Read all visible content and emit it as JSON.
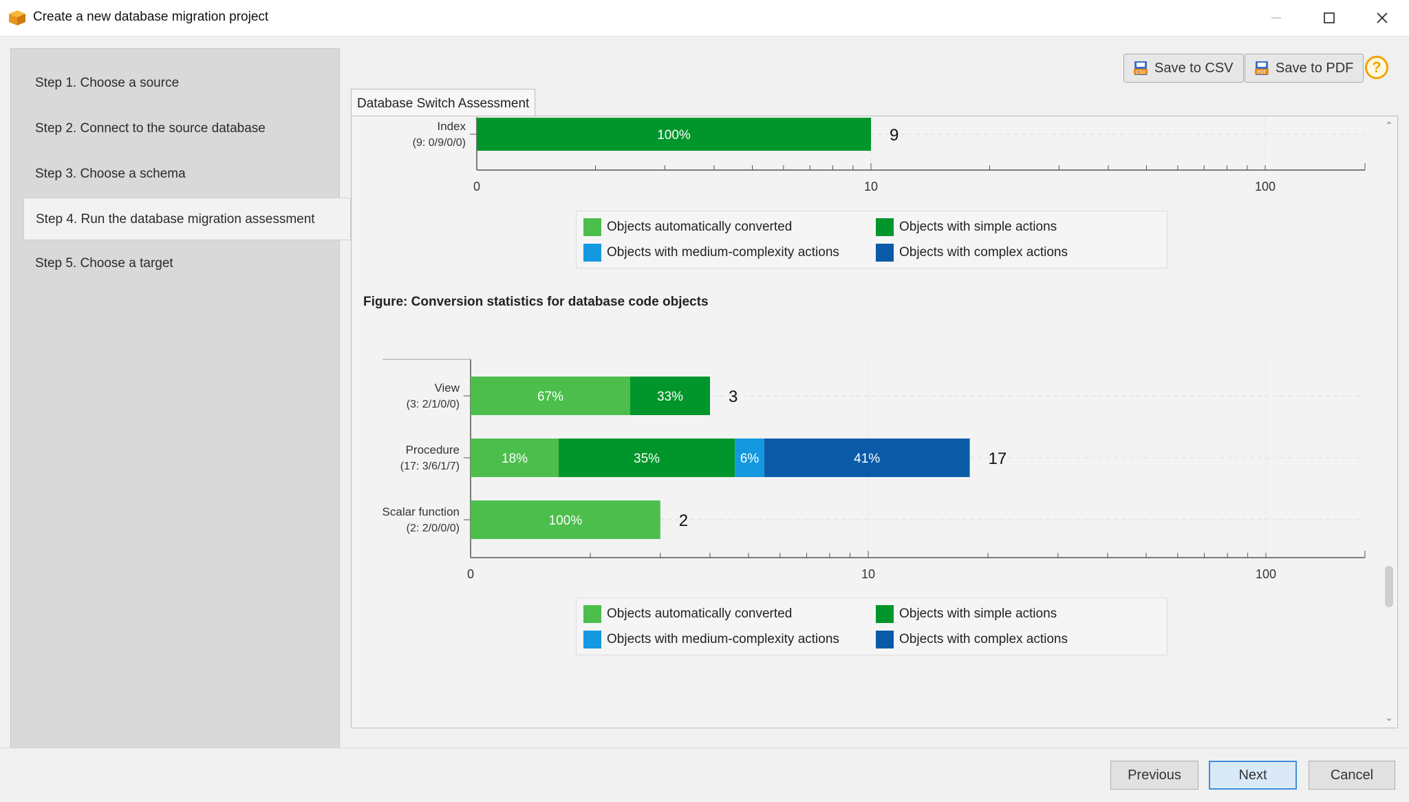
{
  "window": {
    "title": "Create a new database migration project",
    "minimize_icon": "minimize-icon",
    "maximize_icon": "maximize-icon",
    "close_icon": "close-icon"
  },
  "sidebar": {
    "items": [
      {
        "label": "Step 1. Choose a source"
      },
      {
        "label": "Step 2. Connect to the source database"
      },
      {
        "label": "Step 3. Choose a schema"
      },
      {
        "label": "Step 4. Run the database migration assessment",
        "active": true
      },
      {
        "label": "Step 5. Choose a target"
      }
    ]
  },
  "toolbar": {
    "save_csv": "Save to CSV",
    "save_pdf": "Save to PDF",
    "help": "?"
  },
  "tab": {
    "label": "Database Switch Assessment"
  },
  "colors": {
    "auto": "#4cbe4c",
    "simple": "#00962b",
    "medium": "#1499e0",
    "complex": "#0a5aa8"
  },
  "legend": {
    "auto": "Objects automatically converted",
    "simple": "Objects with simple actions",
    "medium": "Objects with medium-complexity actions",
    "complex": "Objects with complex actions"
  },
  "figure2_title": "Figure: Conversion statistics for database code objects",
  "chart_data": [
    {
      "type": "bar",
      "orientation": "horizontal",
      "stacked": true,
      "x_scale": "log1p",
      "x_ticks": [
        "0",
        "10",
        "100"
      ],
      "categories": [
        {
          "name": "Index",
          "sub": "(9: 0/9/0/0)"
        }
      ],
      "totals": [
        9
      ],
      "series": [
        {
          "name": "Objects automatically converted",
          "values": [
            0
          ],
          "labels": [
            ""
          ]
        },
        {
          "name": "Objects with simple actions",
          "values": [
            9
          ],
          "labels": [
            "100%"
          ]
        },
        {
          "name": "Objects with medium-complexity actions",
          "values": [
            0
          ],
          "labels": [
            ""
          ]
        },
        {
          "name": "Objects with complex actions",
          "values": [
            0
          ],
          "labels": [
            ""
          ]
        }
      ]
    },
    {
      "type": "bar",
      "orientation": "horizontal",
      "stacked": true,
      "x_scale": "log1p",
      "x_ticks": [
        "0",
        "10",
        "100"
      ],
      "title": "Figure: Conversion statistics for database code objects",
      "categories": [
        {
          "name": "View",
          "sub": "(3: 2/1/0/0)"
        },
        {
          "name": "Procedure",
          "sub": "(17: 3/6/1/7)"
        },
        {
          "name": "Scalar function",
          "sub": "(2: 2/0/0/0)"
        }
      ],
      "totals": [
        3,
        17,
        2
      ],
      "series": [
        {
          "name": "Objects automatically converted",
          "values": [
            2,
            3,
            2
          ],
          "labels": [
            "67%",
            "18%",
            "100%"
          ]
        },
        {
          "name": "Objects with simple actions",
          "values": [
            1,
            6,
            0
          ],
          "labels": [
            "33%",
            "35%",
            ""
          ]
        },
        {
          "name": "Objects with medium-complexity actions",
          "values": [
            0,
            1,
            0
          ],
          "labels": [
            "",
            "6%",
            ""
          ]
        },
        {
          "name": "Objects with complex actions",
          "values": [
            0,
            7,
            0
          ],
          "labels": [
            "",
            "41%",
            ""
          ]
        }
      ]
    }
  ],
  "footer": {
    "previous": "Previous",
    "next": "Next",
    "cancel": "Cancel"
  }
}
